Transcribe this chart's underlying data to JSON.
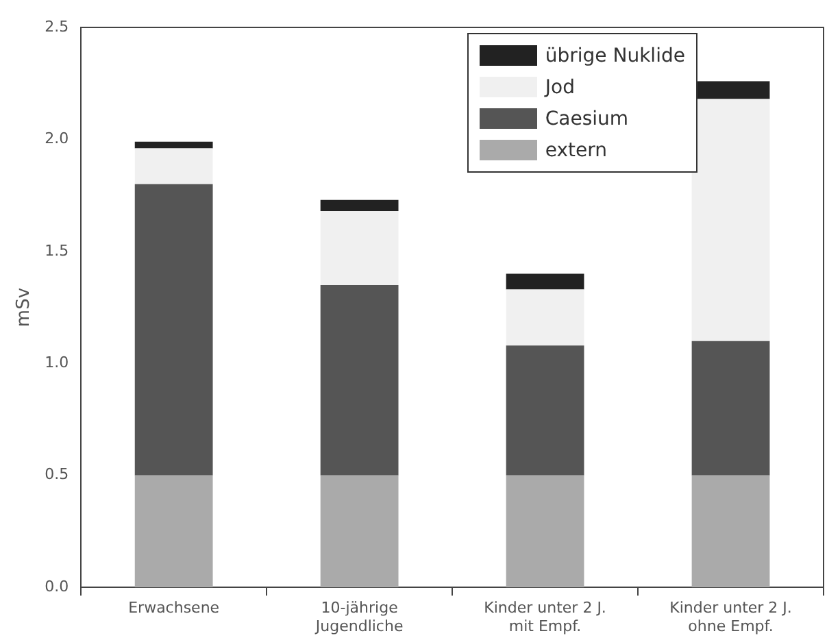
{
  "chart_data": {
    "type": "bar",
    "stacked": true,
    "ylabel": "mSv",
    "categories": [
      "Erwachsene",
      "10-jährige\nJugendliche",
      "Kinder unter 2 J.\nmit Empf.",
      "Kinder unter 2 J.\nohne Empf."
    ],
    "series": [
      {
        "name": "extern",
        "color": "#aaaaaa",
        "values": [
          0.5,
          0.5,
          0.5,
          0.5
        ]
      },
      {
        "name": "Caesium",
        "color": "#555555",
        "values": [
          1.3,
          0.85,
          0.58,
          0.6
        ]
      },
      {
        "name": "Jod",
        "color": "#f0f0f0",
        "values": [
          0.16,
          0.33,
          0.25,
          1.08
        ]
      },
      {
        "name": "übrige Nuklide",
        "color": "#222222",
        "values": [
          0.03,
          0.05,
          0.07,
          0.08
        ]
      }
    ],
    "ylim": [
      0,
      2.5
    ],
    "yticks": [
      {
        "value": 0,
        "label": "0.0"
      },
      0.5,
      {
        "value": 1,
        "label": "1.0"
      },
      1.5,
      {
        "value": 2,
        "label": "2.0"
      },
      2.5
    ],
    "grid": false,
    "legend": "top right"
  }
}
